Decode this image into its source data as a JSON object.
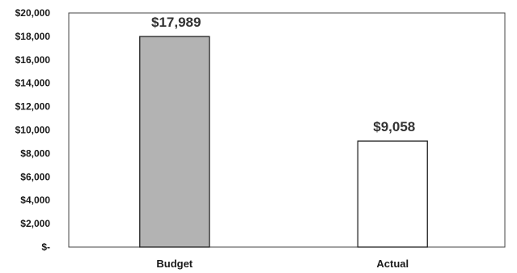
{
  "chart_data": {
    "type": "bar",
    "categories": [
      "Budget",
      "Actual"
    ],
    "values": [
      17989,
      9058
    ],
    "value_labels": [
      "$17,989",
      "$9,058"
    ],
    "bar_colors": [
      "#b3b3b3",
      "#ffffff"
    ],
    "bar_outline": "#222222",
    "ylim": [
      0,
      20000
    ],
    "yticks": [
      0,
      2000,
      4000,
      6000,
      8000,
      10000,
      12000,
      14000,
      16000,
      18000,
      20000
    ],
    "ytick_labels": [
      "$-",
      "$2,000",
      "$4,000",
      "$6,000",
      "$8,000",
      "$10,000",
      "$12,000",
      "$14,000",
      "$16,000",
      "$18,000",
      "$20,000"
    ],
    "grid": false,
    "title": "",
    "xlabel": "",
    "ylabel": ""
  }
}
